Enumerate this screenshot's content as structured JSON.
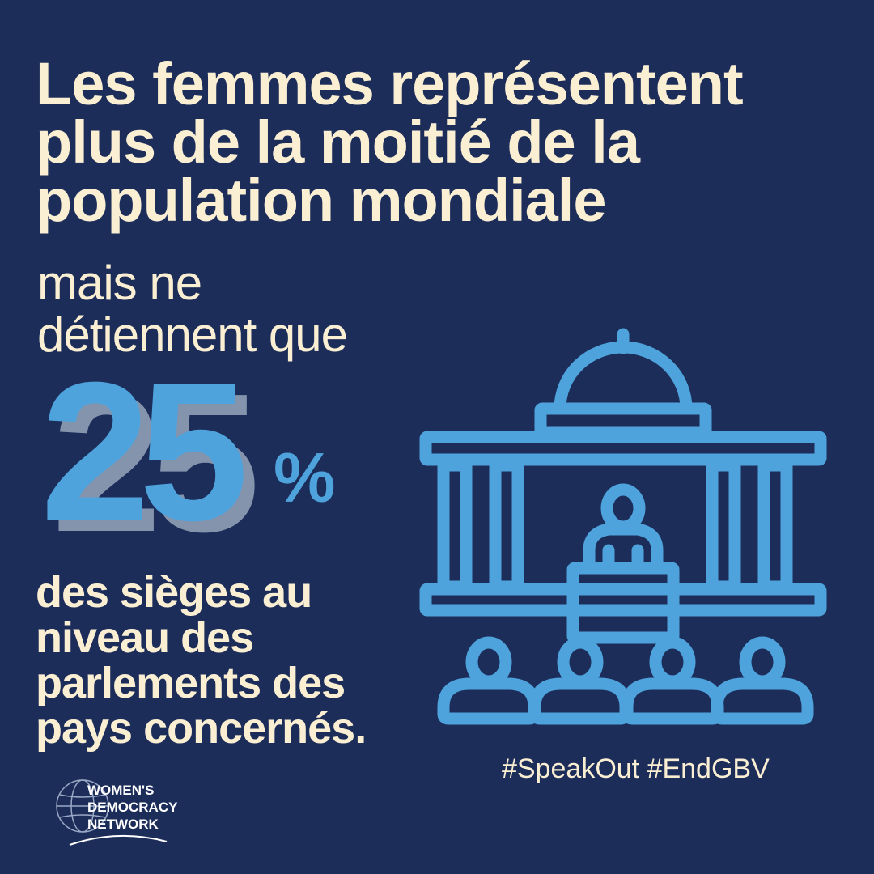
{
  "headline": {
    "lines": [
      "Les femmes représentent",
      "plus de la moitié de la",
      "population mondiale"
    ]
  },
  "lead": {
    "lines": [
      "mais ne",
      "détiennent que"
    ]
  },
  "stat": {
    "value": "25",
    "unit": "%"
  },
  "tail": {
    "lines": [
      "des sièges au",
      "niveau des",
      "parlements des",
      "pays concernés."
    ]
  },
  "hashtags": "#SpeakOut #EndGBV",
  "logo": {
    "lines": [
      "WOMEN'S",
      "DEMOCRACY",
      "NETWORK"
    ]
  },
  "icons": {
    "illustration": "parliament-speaker-audience-icon",
    "logo": "globe-logo-icon"
  },
  "colors": {
    "background": "#1c2d5a",
    "cream": "#fbefd3",
    "accent_blue": "#4fa3dc",
    "shadow_gray": "#8494ad"
  }
}
